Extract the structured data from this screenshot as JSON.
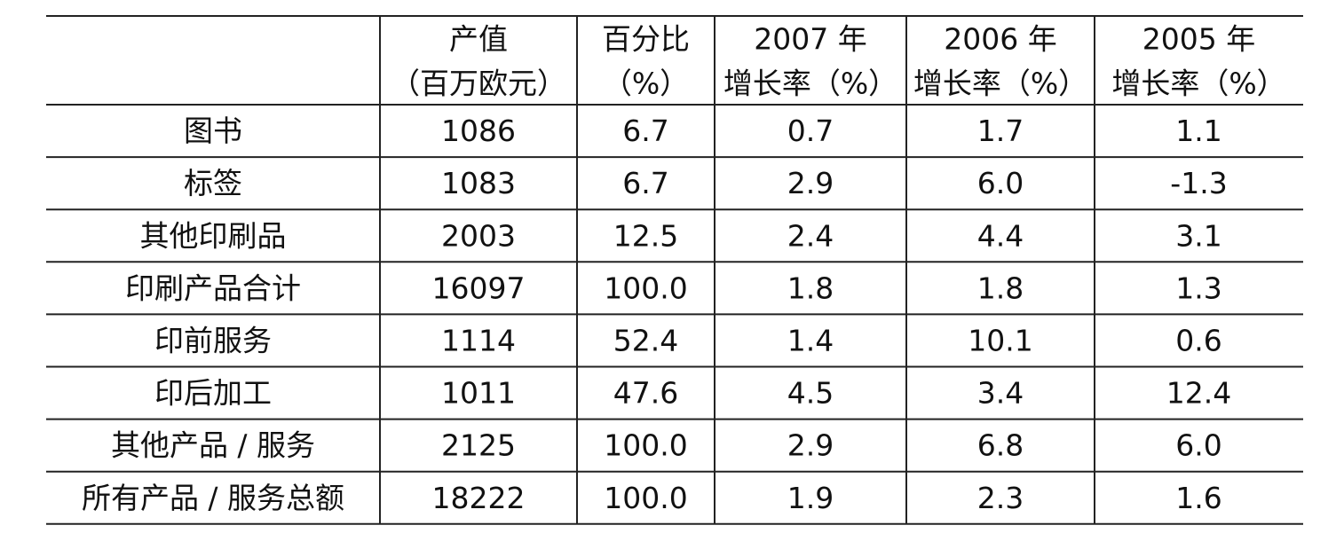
{
  "table": {
    "header": [
      [
        "产值",
        "（百万欧元）"
      ],
      [
        "百分比",
        "（%）"
      ],
      [
        "2007 年",
        "增长率（%）"
      ],
      [
        "2006 年",
        "增长率（%）"
      ],
      [
        "2005 年",
        "增长率（%）"
      ]
    ],
    "rows": [
      [
        "图书",
        "1086",
        "6.7",
        "0.7",
        "1.7",
        "1.1"
      ],
      [
        "标签",
        "1083",
        "6.7",
        "2.9",
        "6.0",
        "-1.3"
      ],
      [
        "其他印刷品",
        "2003",
        "12.5",
        "2.4",
        "4.4",
        "3.1"
      ],
      [
        "印刷产品合计",
        "16097",
        "100.0",
        "1.8",
        "1.8",
        "1.3"
      ],
      [
        "印前服务",
        "1114",
        "52.4",
        "1.4",
        "10.1",
        "0.6"
      ],
      [
        "印后加工",
        "1011",
        "47.6",
        "4.5",
        "3.4",
        "12.4"
      ],
      [
        "其他产品 / 服务",
        "2125",
        "100.0",
        "2.9",
        "6.8",
        "6.0"
      ],
      [
        "所有产品 / 服务总额",
        "18222",
        "100.0",
        "1.9",
        "2.3",
        "1.6"
      ]
    ]
  }
}
